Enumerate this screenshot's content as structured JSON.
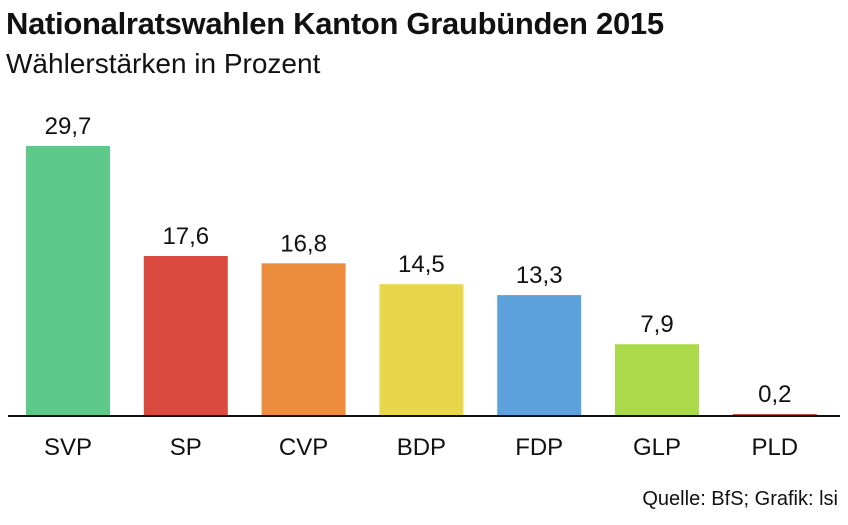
{
  "chart_data": {
    "type": "bar",
    "title": "Nationalratswahlen Kanton Graubünden 2015",
    "subtitle": "Wählerstärken in Prozent",
    "xlabel": "",
    "ylabel": "",
    "ylim": [
      0,
      29.7
    ],
    "grid": false,
    "categories": [
      "SVP",
      "SP",
      "CVP",
      "BDP",
      "FDP",
      "GLP",
      "PLD"
    ],
    "values": [
      29.7,
      17.6,
      16.8,
      14.5,
      13.3,
      7.9,
      0.2
    ],
    "value_labels": [
      "29,7",
      "17,6",
      "16,8",
      "14,5",
      "13,3",
      "7,9",
      "0,2"
    ],
    "colors": [
      "#5ec98b",
      "#db4a3f",
      "#ec8c3c",
      "#e8d64b",
      "#5da2dc",
      "#abd94a",
      "#c8553a"
    ],
    "source": "Quelle: BfS; Grafik: lsi"
  }
}
